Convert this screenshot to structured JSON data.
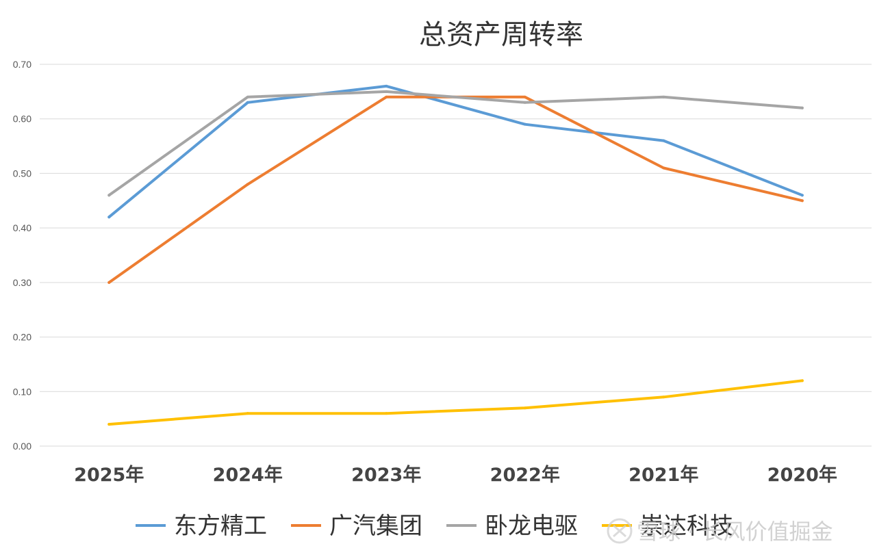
{
  "chart_data": {
    "type": "line",
    "title": "总资产周转率",
    "categories": [
      "2025年",
      "2024年",
      "2023年",
      "2022年",
      "2021年",
      "2020年"
    ],
    "ylim": [
      0,
      0.7
    ],
    "yticks": [
      "0.00",
      "0.10",
      "0.20",
      "0.30",
      "0.40",
      "0.50",
      "0.60",
      "0.70"
    ],
    "grid": true,
    "legend_position": "bottom",
    "xlabel": "",
    "ylabel": "",
    "series": [
      {
        "name": "东方精工",
        "color": "#5b9bd5",
        "values": [
          0.42,
          0.63,
          0.66,
          0.59,
          0.56,
          0.46
        ]
      },
      {
        "name": "广汽集团",
        "color": "#ed7d31",
        "values": [
          0.3,
          0.48,
          0.64,
          0.64,
          0.51,
          0.45
        ]
      },
      {
        "name": "卧龙电驱",
        "color": "#a5a5a5",
        "values": [
          0.46,
          0.64,
          0.65,
          0.63,
          0.64,
          0.62
        ]
      },
      {
        "name": "崇达科技",
        "color": "#ffc000",
        "values": [
          0.04,
          0.06,
          0.06,
          0.07,
          0.09,
          0.12
        ]
      }
    ]
  },
  "watermark": {
    "icon": "snowball-logo-icon",
    "text": "雪球 · 长风价值掘金"
  }
}
